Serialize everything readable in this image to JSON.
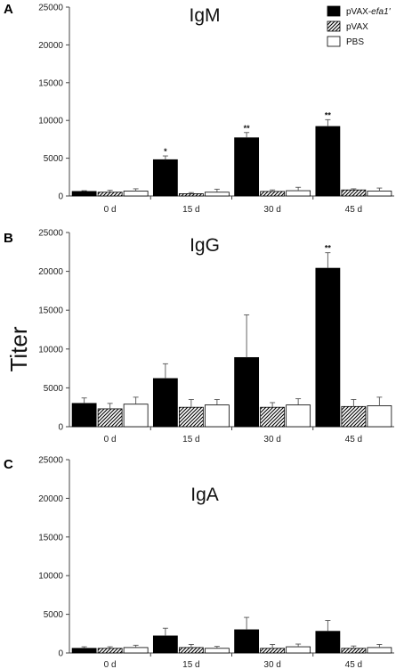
{
  "figure": {
    "y_axis_label": "Titer",
    "legend": [
      {
        "key": "pvax_efa1",
        "prefix": "pVAX-",
        "italic": "efa1'"
      },
      {
        "key": "pvax",
        "prefix": "pVAX",
        "italic": ""
      },
      {
        "key": "pbs",
        "prefix": "PBS",
        "italic": ""
      }
    ]
  },
  "chart_data": [
    {
      "type": "bar",
      "panel": "A",
      "title": "IgM",
      "categories": [
        "0 d",
        "15 d",
        "30 d",
        "45 d"
      ],
      "ylim": [
        0,
        25000
      ],
      "yticks": [
        0,
        5000,
        10000,
        15000,
        20000,
        25000
      ],
      "series": [
        {
          "name": "pVAX-efa1'",
          "fill": "solid",
          "values": [
            600,
            4800,
            7700,
            9200
          ],
          "errors": [
            100,
            500,
            700,
            900
          ],
          "significance": [
            "",
            "*",
            "**",
            "**"
          ]
        },
        {
          "name": "pVAX",
          "fill": "hatch",
          "values": [
            500,
            300,
            600,
            800
          ],
          "errors": [
            250,
            150,
            200,
            150
          ],
          "significance": [
            "",
            "",
            "",
            ""
          ]
        },
        {
          "name": "PBS",
          "fill": "white",
          "values": [
            650,
            500,
            700,
            650
          ],
          "errors": [
            300,
            400,
            450,
            400
          ],
          "significance": [
            "",
            "",
            "",
            ""
          ]
        }
      ]
    },
    {
      "type": "bar",
      "panel": "B",
      "title": "IgG",
      "categories": [
        "0 d",
        "15 d",
        "30 d",
        "45 d"
      ],
      "ylim": [
        0,
        25000
      ],
      "yticks": [
        0,
        5000,
        10000,
        15000,
        20000,
        25000
      ],
      "series": [
        {
          "name": "pVAX-efa1'",
          "fill": "solid",
          "values": [
            3000,
            6200,
            8900,
            20400
          ],
          "errors": [
            700,
            1900,
            5500,
            2000
          ],
          "significance": [
            "",
            "",
            "",
            "**"
          ]
        },
        {
          "name": "pVAX",
          "fill": "hatch",
          "values": [
            2300,
            2500,
            2500,
            2600
          ],
          "errors": [
            700,
            1000,
            600,
            900
          ],
          "significance": [
            "",
            "",
            "",
            ""
          ]
        },
        {
          "name": "PBS",
          "fill": "white",
          "values": [
            2900,
            2800,
            2800,
            2700
          ],
          "errors": [
            900,
            700,
            800,
            1100
          ],
          "significance": [
            "",
            "",
            "",
            ""
          ]
        }
      ]
    },
    {
      "type": "bar",
      "panel": "C",
      "title": "IgA",
      "categories": [
        "0 d",
        "15 d",
        "30 d",
        "45 d"
      ],
      "ylim": [
        0,
        25000
      ],
      "yticks": [
        0,
        5000,
        10000,
        15000,
        20000,
        25000
      ],
      "series": [
        {
          "name": "pVAX-efa1'",
          "fill": "solid",
          "values": [
            600,
            2200,
            3000,
            2800
          ],
          "errors": [
            200,
            1000,
            1600,
            1400
          ],
          "significance": [
            "",
            "",
            "",
            ""
          ]
        },
        {
          "name": "pVAX",
          "fill": "hatch",
          "values": [
            600,
            700,
            600,
            600
          ],
          "errors": [
            200,
            400,
            500,
            300
          ],
          "significance": [
            "",
            "",
            "",
            ""
          ]
        },
        {
          "name": "PBS",
          "fill": "white",
          "values": [
            700,
            600,
            800,
            700
          ],
          "errors": [
            300,
            250,
            350,
            400
          ],
          "significance": [
            "",
            "",
            "",
            ""
          ]
        }
      ]
    }
  ]
}
